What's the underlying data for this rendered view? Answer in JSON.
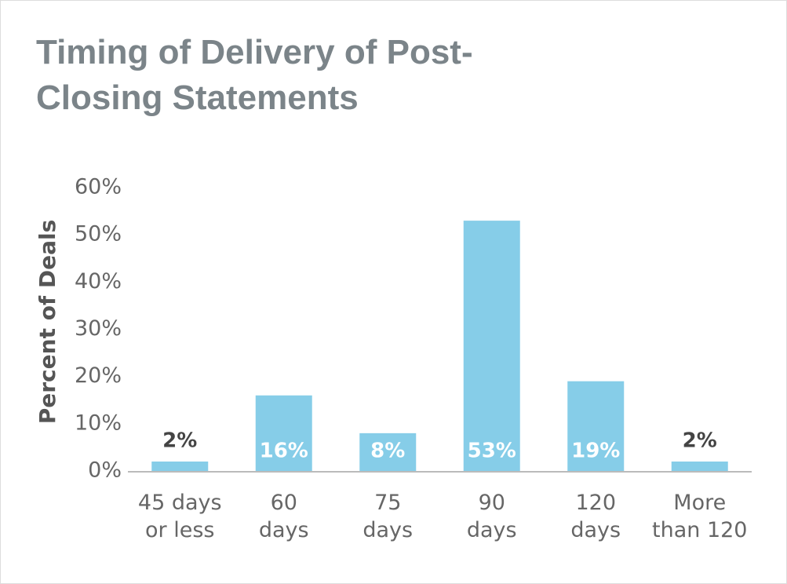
{
  "chart_data": {
    "type": "bar",
    "title": "Timing of Delivery of Post-Closing Statements",
    "ylabel": "Percent of Deals",
    "categories": [
      [
        "45 days",
        "or less"
      ],
      [
        "60",
        "days"
      ],
      [
        "75",
        "days"
      ],
      [
        "90",
        "days"
      ],
      [
        "120",
        "days"
      ],
      [
        "More",
        "than 120"
      ]
    ],
    "values": [
      2,
      16,
      8,
      53,
      19,
      2
    ],
    "value_labels": [
      "2%",
      "16%",
      "8%",
      "53%",
      "19%",
      "2%"
    ],
    "color": "#86cde8",
    "ylim": [
      0,
      60
    ],
    "yticks": [
      {
        "value": 0,
        "label": "0%"
      },
      {
        "value": 10,
        "label": "10%"
      },
      {
        "value": 20,
        "label": "20%"
      },
      {
        "value": 30,
        "label": "30%"
      },
      {
        "value": 40,
        "label": "40%"
      },
      {
        "value": 50,
        "label": "50%"
      },
      {
        "value": 60,
        "label": "60%"
      }
    ]
  }
}
